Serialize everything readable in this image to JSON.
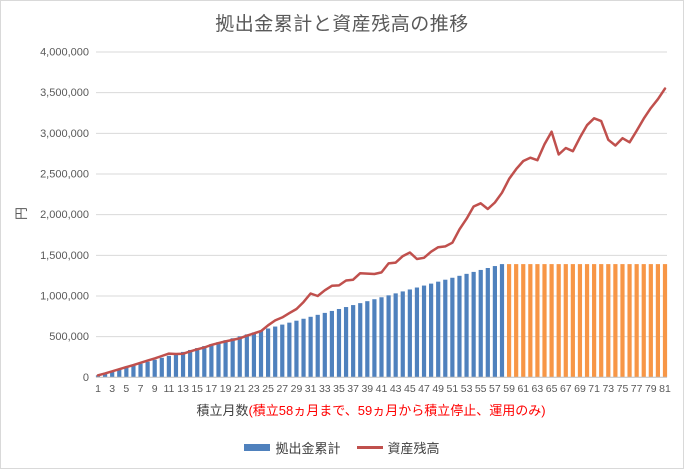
{
  "chart": {
    "title": "拠出金累計と資産残高の推移",
    "y_axis_title": "円",
    "x_axis_title_main": "積立月数",
    "x_axis_title_note": "(積立58ヵ月まで、59ヵ月から積立停止、運用のみ)",
    "x_axis_note_color": "#ff0000",
    "legend_bar_label": "拠出金累計",
    "legend_line_label": "資産残高"
  },
  "chart_data": {
    "type": "bar+line",
    "title": "拠出金累計と資産残高の推移",
    "xlabel": "積立月数(積立58ヵ月まで、59ヵ月から積立停止、運用のみ)",
    "ylabel": "円",
    "ylim": [
      0,
      4000000
    ],
    "grid": "horizontal",
    "legend_position": "bottom",
    "x_tick_labels": [
      1,
      3,
      5,
      7,
      9,
      11,
      13,
      15,
      17,
      19,
      21,
      23,
      25,
      27,
      29,
      31,
      33,
      35,
      37,
      39,
      41,
      43,
      45,
      47,
      49,
      51,
      53,
      55,
      57,
      59,
      61,
      63,
      65,
      67,
      69,
      71,
      73,
      75,
      77,
      79,
      81
    ],
    "y_ticks": [
      0,
      500000,
      1000000,
      1500000,
      2000000,
      2500000,
      3000000,
      3500000,
      4000000
    ],
    "y_tick_labels": [
      "0",
      "500,000",
      "1,000,000",
      "1,500,000",
      "2,000,000",
      "2,500,000",
      "3,000,000",
      "3,500,000",
      "4,000,000"
    ],
    "colors": {
      "bar_contribution_phase": "#4F81BD",
      "bar_stopped_phase": "#F79646",
      "line": "#C0504D",
      "gridline": "#D9D9D9",
      "axis_line": "#BFBFBF",
      "tick_text": "#595959"
    },
    "phase_split_month": 59,
    "series": [
      {
        "name": "拠出金累計",
        "type": "bar",
        "values": [
          24000,
          48000,
          72000,
          96000,
          120000,
          144000,
          168000,
          192000,
          216000,
          240000,
          264000,
          288000,
          312000,
          336000,
          360000,
          384000,
          408000,
          432000,
          456000,
          480000,
          504000,
          528000,
          552000,
          576000,
          600000,
          624000,
          648000,
          672000,
          696000,
          720000,
          744000,
          768000,
          792000,
          816000,
          840000,
          864000,
          888000,
          912000,
          936000,
          960000,
          984000,
          1008000,
          1032000,
          1056000,
          1080000,
          1104000,
          1128000,
          1152000,
          1176000,
          1200000,
          1224000,
          1248000,
          1272000,
          1296000,
          1320000,
          1344000,
          1368000,
          1392000,
          1392000,
          1392000,
          1392000,
          1392000,
          1392000,
          1392000,
          1392000,
          1392000,
          1392000,
          1392000,
          1392000,
          1392000,
          1392000,
          1392000,
          1392000,
          1392000,
          1392000,
          1392000,
          1392000,
          1392000,
          1392000,
          1392000,
          1392000
        ]
      },
      {
        "name": "資産残高",
        "type": "line",
        "values": [
          24000,
          48000,
          74000,
          100000,
          126000,
          150000,
          178000,
          205000,
          232000,
          262000,
          292000,
          286000,
          290000,
          318000,
          344000,
          366000,
          398000,
          420000,
          442000,
          460000,
          480000,
          512000,
          540000,
          568000,
          640000,
          700000,
          736000,
          790000,
          840000,
          925000,
          1030000,
          1000000,
          1070000,
          1125000,
          1130000,
          1190000,
          1200000,
          1280000,
          1275000,
          1270000,
          1290000,
          1400000,
          1410000,
          1490000,
          1535000,
          1455000,
          1470000,
          1545000,
          1600000,
          1610000,
          1655000,
          1820000,
          1950000,
          2100000,
          2140000,
          2070000,
          2150000,
          2270000,
          2440000,
          2560000,
          2660000,
          2700000,
          2670000,
          2865000,
          3020000,
          2740000,
          2820000,
          2780000,
          2950000,
          3100000,
          3185000,
          3150000,
          2920000,
          2850000,
          2940000,
          2890000,
          3030000,
          3180000,
          3310000,
          3420000,
          3550000
        ]
      }
    ]
  }
}
